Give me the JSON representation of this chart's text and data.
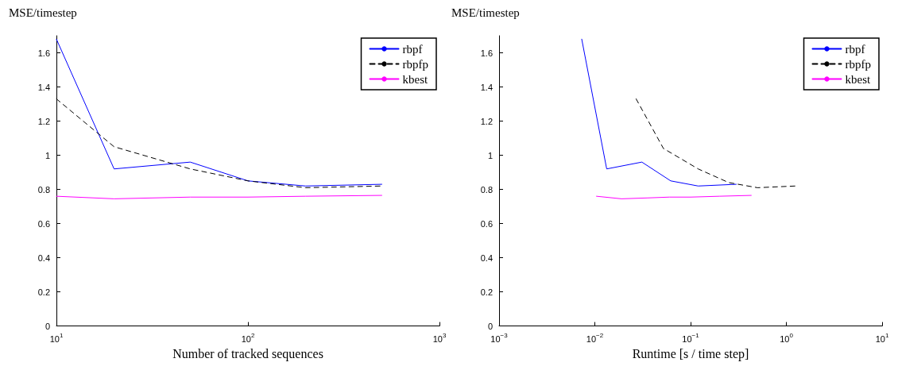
{
  "chart_data": [
    {
      "type": "line",
      "xlabel": "Number of tracked sequences",
      "ylabel": "MSE/timestep",
      "log": "x",
      "xlim": [
        10,
        1000
      ],
      "xticks": [
        {
          "value": 10,
          "label": "10$^{1}$"
        },
        {
          "value": 100,
          "label": "10$^{2}$"
        },
        {
          "value": 1000,
          "label": "10$^{3}$"
        }
      ],
      "ylim": [
        0,
        1.7
      ],
      "yticks": [
        0,
        0.2,
        0.4,
        0.6,
        0.8,
        1,
        1.2,
        1.4,
        1.6
      ],
      "legend": "top right",
      "grid": false,
      "marker": "none",
      "x": [
        10,
        20,
        50,
        100,
        200,
        500
      ],
      "series": [
        {
          "name": "rbpf",
          "color": "#0000ff",
          "line_style": "solid",
          "values": [
            1.68,
            0.92,
            0.96,
            0.85,
            0.82,
            0.83
          ]
        },
        {
          "name": "rbpfp",
          "color": "#000000",
          "line_style": "dashed",
          "values": [
            1.33,
            1.05,
            0.92,
            0.85,
            0.81,
            0.82
          ]
        },
        {
          "name": "kbest",
          "color": "#ff00ff",
          "line_style": "solid",
          "values": [
            0.76,
            0.745,
            0.755,
            0.755,
            0.76,
            0.765
          ]
        }
      ]
    },
    {
      "type": "line",
      "xlabel": "Runtime [s / time step]",
      "ylabel": "MSE/timestep",
      "log": "x",
      "xlim": [
        0.001,
        10
      ],
      "xticks": [
        {
          "value": 0.001,
          "label": "10$^{−3}$"
        },
        {
          "value": 0.01,
          "label": "10$^{−2}$"
        },
        {
          "value": 0.1,
          "label": "10$^{−1}$"
        },
        {
          "value": 1,
          "label": "10$^{0}$"
        },
        {
          "value": 10,
          "label": "10$^{1}$"
        }
      ],
      "ylim": [
        0,
        1.7
      ],
      "yticks": [
        0,
        0.2,
        0.4,
        0.6,
        0.8,
        1,
        1.2,
        1.4,
        1.6
      ],
      "legend": "top right",
      "grid": false,
      "marker": "none",
      "series": [
        {
          "name": "rbpf",
          "color": "#0000ff",
          "line_style": "solid",
          "x": [
            0.0073,
            0.0133,
            0.031,
            0.062,
            0.12,
            0.3
          ],
          "values": [
            1.68,
            0.92,
            0.96,
            0.85,
            0.82,
            0.83
          ]
        },
        {
          "name": "rbpfp",
          "color": "#000000",
          "line_style": "dashed",
          "x": [
            0.027,
            0.052,
            0.12,
            0.25,
            0.5,
            1.25
          ],
          "values": [
            1.33,
            1.04,
            0.92,
            0.84,
            0.81,
            0.82
          ]
        },
        {
          "name": "kbest",
          "color": "#ff00ff",
          "line_style": "solid",
          "x": [
            0.0104,
            0.019,
            0.035,
            0.06,
            0.1,
            0.2,
            0.43
          ],
          "values": [
            0.76,
            0.745,
            0.75,
            0.755,
            0.755,
            0.76,
            0.765
          ]
        }
      ]
    }
  ]
}
